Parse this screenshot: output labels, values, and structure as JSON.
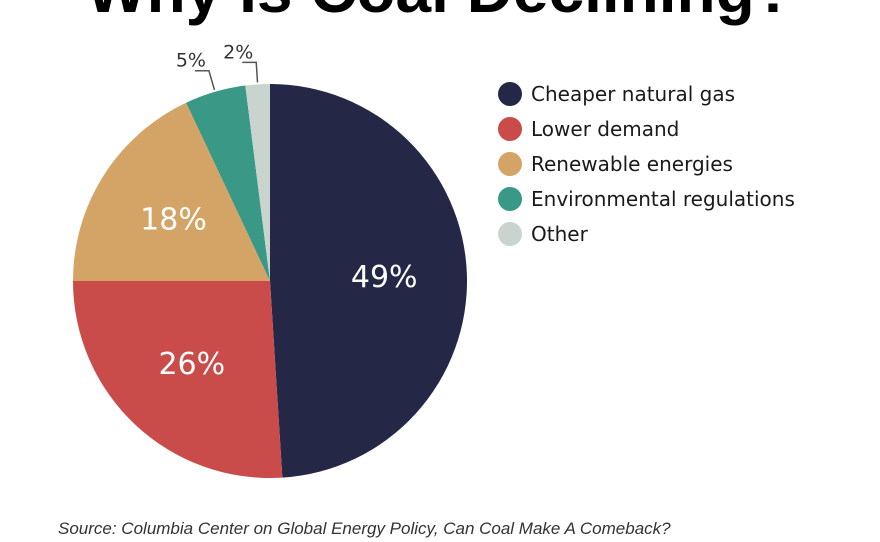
{
  "chart_data": {
    "type": "pie",
    "title": "Why Is Coal Declining?",
    "categories": [
      "Cheaper natural gas",
      "Lower demand",
      "Renewable energies",
      "Environmental regulations",
      "Other"
    ],
    "values": [
      49,
      26,
      18,
      5,
      2
    ],
    "labels": [
      "49%",
      "26%",
      "18%",
      "5%",
      "2%"
    ],
    "colors": [
      "#252746",
      "#c94b4a",
      "#d4a466",
      "#3a9887",
      "#c9d4ce"
    ],
    "legend_position": "right"
  },
  "source": "Source: Columbia Center on Global Energy Policy, Can Coal Make A Comeback?"
}
